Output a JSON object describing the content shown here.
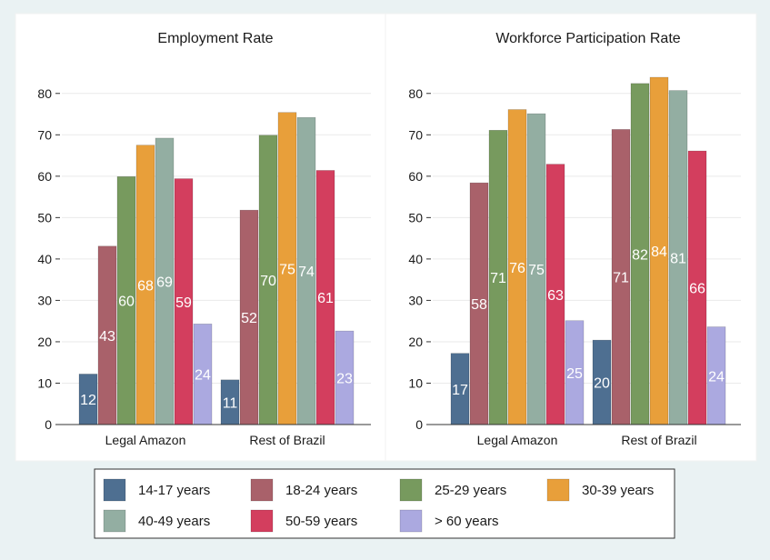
{
  "chart_data": [
    {
      "type": "bar",
      "title": "Employment Rate",
      "categories": [
        "Legal Amazon",
        "Rest of Brazil"
      ],
      "ylim": [
        0,
        85
      ],
      "yticks": [
        0,
        10,
        20,
        30,
        40,
        50,
        60,
        70,
        80
      ],
      "grid": true,
      "series": [
        {
          "name": "14-17 years",
          "values": [
            12.2,
            10.8
          ],
          "labels": [
            "12",
            "11"
          ]
        },
        {
          "name": "18-24 years",
          "values": [
            43.1,
            51.8
          ],
          "labels": [
            "43",
            "52"
          ]
        },
        {
          "name": "25-29 years",
          "values": [
            59.9,
            69.9
          ],
          "labels": [
            "60",
            "70"
          ]
        },
        {
          "name": "30-39 years",
          "values": [
            67.5,
            75.4
          ],
          "labels": [
            "68",
            "75"
          ]
        },
        {
          "name": "40-49 years",
          "values": [
            69.2,
            74.2
          ],
          "labels": [
            "69",
            "74"
          ]
        },
        {
          "name": "50-59 years",
          "values": [
            59.4,
            61.4
          ],
          "labels": [
            "59",
            "61"
          ]
        },
        {
          "name": "> 60 years",
          "values": [
            24.3,
            22.6
          ],
          "labels": [
            "24",
            "23"
          ]
        }
      ]
    },
    {
      "type": "bar",
      "title": "Workforce Participation Rate",
      "categories": [
        "Legal Amazon",
        "Rest of Brazil"
      ],
      "ylim": [
        0,
        85
      ],
      "yticks": [
        0,
        10,
        20,
        30,
        40,
        50,
        60,
        70,
        80
      ],
      "grid": true,
      "series": [
        {
          "name": "14-17 years",
          "values": [
            17.2,
            20.4
          ],
          "labels": [
            "17",
            "20"
          ]
        },
        {
          "name": "18-24 years",
          "values": [
            58.4,
            71.3
          ],
          "labels": [
            "58",
            "71"
          ]
        },
        {
          "name": "25-29 years",
          "values": [
            71.1,
            82.4
          ],
          "labels": [
            "71",
            "82"
          ]
        },
        {
          "name": "30-39 years",
          "values": [
            76.1,
            83.9
          ],
          "labels": [
            "76",
            "84"
          ]
        },
        {
          "name": "40-49 years",
          "values": [
            75.1,
            80.7
          ],
          "labels": [
            "75",
            "81"
          ]
        },
        {
          "name": "50-59 years",
          "values": [
            62.9,
            66.1
          ],
          "labels": [
            "63",
            "66"
          ]
        },
        {
          "name": "> 60 years",
          "values": [
            25.1,
            23.6
          ],
          "labels": [
            "25",
            "24"
          ]
        }
      ]
    }
  ],
  "legend": {
    "placement": "bottom",
    "items": [
      {
        "label": "14-17 years",
        "color": "#4e6f91"
      },
      {
        "label": "18-24 years",
        "color": "#a9616a"
      },
      {
        "label": "25-29 years",
        "color": "#779a5e"
      },
      {
        "label": "30-39 years",
        "color": "#e89f3a"
      },
      {
        "label": "40-49 years",
        "color": "#93aea2"
      },
      {
        "label": "50-59 years",
        "color": "#d33e5e"
      },
      {
        "label": "> 60 years",
        "color": "#aba9e0"
      }
    ]
  }
}
